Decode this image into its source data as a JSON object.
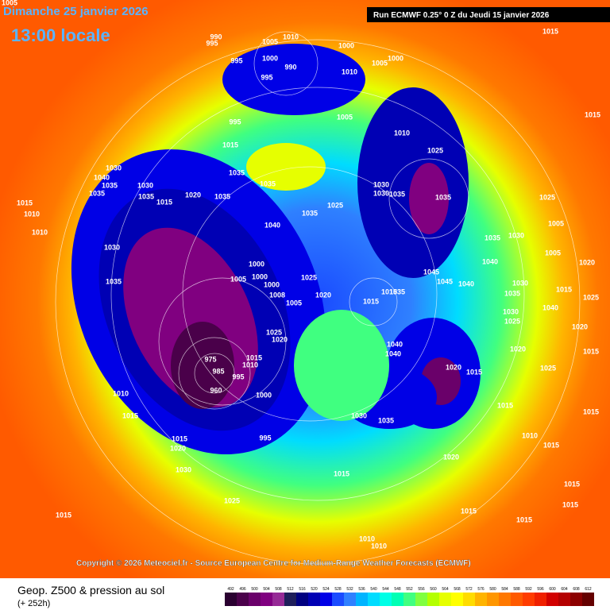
{
  "header": {
    "date": "Dimanche 25 janvier 2026",
    "time": "13:00 locale",
    "run": "Run ECMWF 0.25° 0 Z du Jeudi 15 janvier 2026"
  },
  "copyright": "Copyright © 2026 Meteociel.fr - Source European Centre for Medium-Range Weather Forecasts (ECMWF)",
  "footer": {
    "title": "Geop. Z500 & pression au sol",
    "lead": "(+ 252h)"
  },
  "scale": {
    "values": [
      492,
      496,
      500,
      504,
      508,
      512,
      516,
      520,
      524,
      528,
      532,
      536,
      540,
      544,
      548,
      552,
      556,
      560,
      564,
      568,
      572,
      576,
      580,
      584,
      588,
      592,
      596,
      600,
      604,
      608,
      612
    ],
    "colors": [
      "#2a0030",
      "#4a004a",
      "#6a006a",
      "#800080",
      "#962a96",
      "#1e1e5a",
      "#000080",
      "#0000b4",
      "#0000e6",
      "#1a4bff",
      "#2f80ff",
      "#00b4ff",
      "#00dcff",
      "#00ffe6",
      "#00ffb4",
      "#40ff80",
      "#80ff40",
      "#b4ff00",
      "#e6ff00",
      "#ffff00",
      "#ffdc00",
      "#ffb400",
      "#ff9600",
      "#ff7800",
      "#ff5a00",
      "#ff3c00",
      "#f02000",
      "#d20000",
      "#b40000",
      "#8c0000",
      "#640000"
    ]
  },
  "pressure_labels": [
    "990",
    "995",
    "1005",
    "1010",
    "995",
    "1000",
    "990",
    "995",
    "1000",
    "1000",
    "1005",
    "1010",
    "995",
    "1005",
    "1010",
    "1015",
    "1025",
    "1035",
    "1035",
    "1035",
    "1020",
    "1030",
    "1040",
    "1035",
    "1035",
    "1030",
    "1035",
    "1015",
    "1015",
    "1010",
    "1010",
    "1030",
    "1035",
    "1040",
    "1035",
    "1025",
    "1030",
    "1030",
    "1035",
    "1035",
    "1025",
    "1000",
    "1005",
    "1000",
    "1000",
    "1008",
    "1025",
    "1020",
    "1005",
    "1015",
    "1015",
    "1035",
    "1045",
    "1045",
    "1040",
    "1040",
    "1035",
    "1030",
    "1005",
    "1005",
    "1015",
    "1030",
    "1035",
    "1030",
    "1025",
    "1040",
    "1025",
    "1020",
    "1040",
    "1040",
    "1020",
    "1015",
    "1025",
    "1020",
    "975",
    "985",
    "995",
    "1015",
    "1010",
    "1000",
    "960",
    "1010",
    "1015",
    "1030",
    "1035",
    "995",
    "1015",
    "1020",
    "1030",
    "1015",
    "1020",
    "1015",
    "1010",
    "1015",
    "1015",
    "1015",
    "1025",
    "1015",
    "1015",
    "1015",
    "1010",
    "1010",
    "1015",
    "1015",
    "1015",
    "1015",
    "1020",
    "1025",
    "1020",
    "1005"
  ]
}
